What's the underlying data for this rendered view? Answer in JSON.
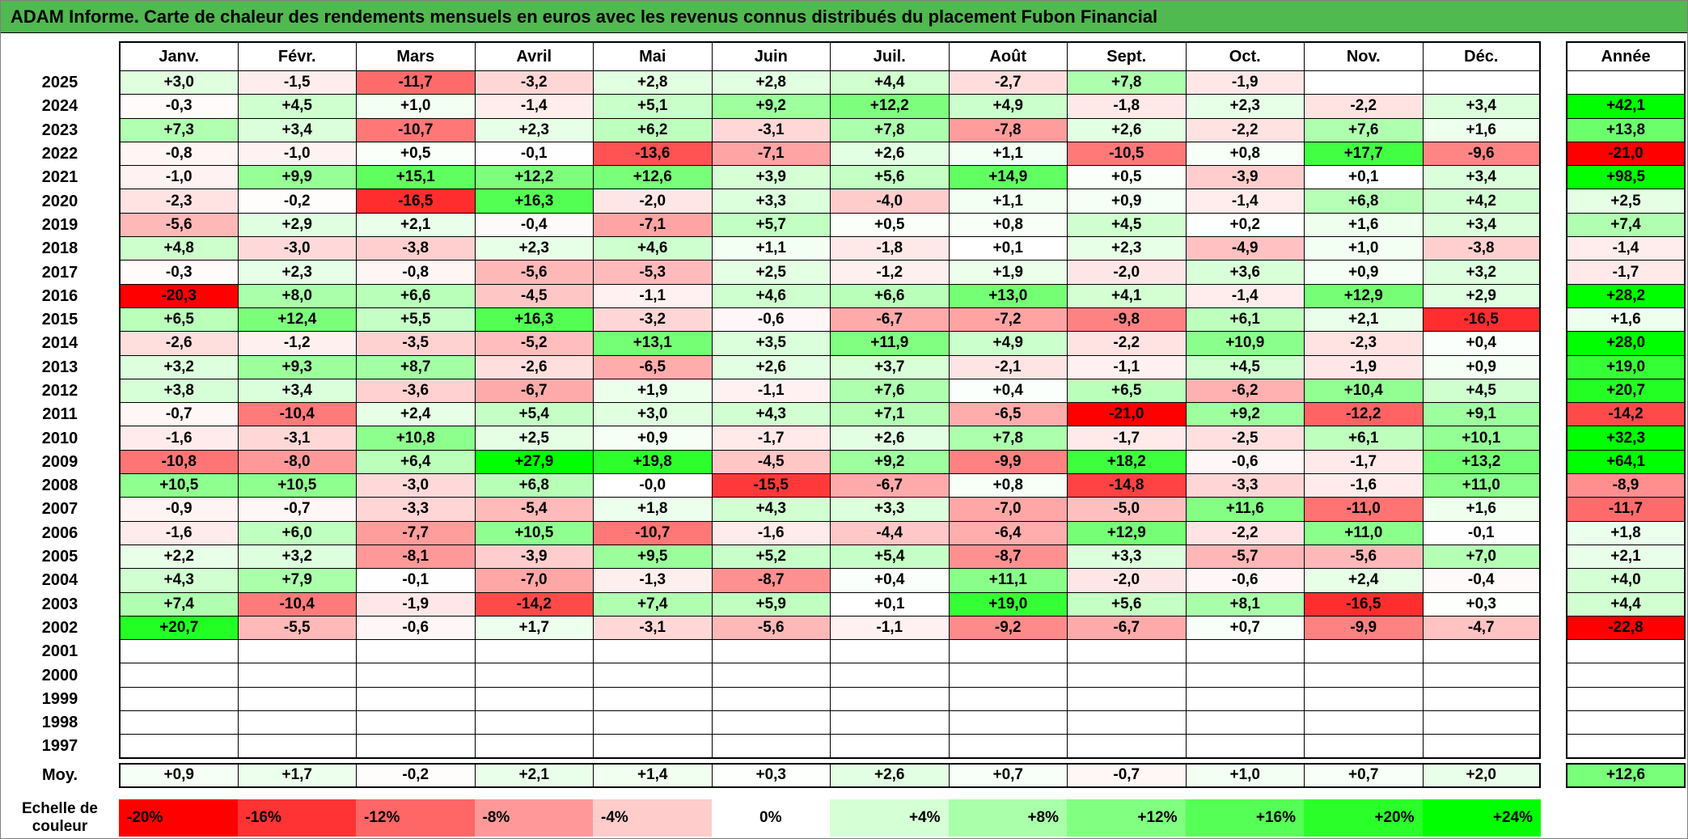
{
  "title": "ADAM Informe. Carte de chaleur des rendements mensuels en euros avec les revenus connus distribués du placement Fubon Financial",
  "colors": {
    "title_bar": "#50B950",
    "grid_line": "#000000",
    "negative_extreme": "#FF0000",
    "positive_extreme": "#00FF00",
    "neutral": "#FFFFFF"
  },
  "chart_data": {
    "type": "heatmap",
    "title": "ADAM Informe. Carte de chaleur des rendements mensuels en euros avec les revenus connus distribués du placement Fubon Financial",
    "columns": [
      "Janv.",
      "Févr.",
      "Mars",
      "Avril",
      "Mai",
      "Juin",
      "Juil.",
      "Août",
      "Sept.",
      "Oct.",
      "Nov.",
      "Déc."
    ],
    "annual_label": "Année",
    "avg_label": "Moy.",
    "rows": [
      {
        "year": "2025",
        "cells": [
          "+3,0",
          "-1,5",
          "-11,7",
          "-3,2",
          "+2,8",
          "+2,8",
          "+4,4",
          "-2,7",
          "+7,8",
          "-1,9",
          "",
          ""
        ],
        "annual": ""
      },
      {
        "year": "2024",
        "cells": [
          "-0,3",
          "+4,5",
          "+1,0",
          "-1,4",
          "+5,1",
          "+9,2",
          "+12,2",
          "+4,9",
          "-1,8",
          "+2,3",
          "-2,2",
          "+3,4"
        ],
        "annual": "+42,1"
      },
      {
        "year": "2023",
        "cells": [
          "+7,3",
          "+3,4",
          "-10,7",
          "+2,3",
          "+6,2",
          "-3,1",
          "+7,8",
          "-7,8",
          "+2,6",
          "-2,2",
          "+7,6",
          "+1,6"
        ],
        "annual": "+13,8"
      },
      {
        "year": "2022",
        "cells": [
          "-0,8",
          "-1,0",
          "+0,5",
          "-0,1",
          "-13,6",
          "-7,1",
          "+2,6",
          "+1,1",
          "-10,5",
          "+0,8",
          "+17,7",
          "-9,6"
        ],
        "annual": "-21,0"
      },
      {
        "year": "2021",
        "cells": [
          "-1,0",
          "+9,9",
          "+15,1",
          "+12,2",
          "+12,6",
          "+3,9",
          "+5,6",
          "+14,9",
          "+0,5",
          "-3,9",
          "+0,1",
          "+3,4"
        ],
        "annual": "+98,5"
      },
      {
        "year": "2020",
        "cells": [
          "-2,3",
          "-0,2",
          "-16,5",
          "+16,3",
          "-2,0",
          "+3,3",
          "-4,0",
          "+1,1",
          "+0,9",
          "-1,4",
          "+6,8",
          "+4,2"
        ],
        "annual": "+2,5"
      },
      {
        "year": "2019",
        "cells": [
          "-5,6",
          "+2,9",
          "+2,1",
          "-0,4",
          "-7,1",
          "+5,7",
          "+0,5",
          "+0,8",
          "+4,5",
          "+0,2",
          "+1,6",
          "+3,4"
        ],
        "annual": "+7,4"
      },
      {
        "year": "2018",
        "cells": [
          "+4,8",
          "-3,0",
          "-3,8",
          "+2,3",
          "+4,6",
          "+1,1",
          "-1,8",
          "+0,1",
          "+2,3",
          "-4,9",
          "+1,0",
          "-3,8"
        ],
        "annual": "-1,4"
      },
      {
        "year": "2017",
        "cells": [
          "-0,3",
          "+2,3",
          "-0,8",
          "-5,6",
          "-5,3",
          "+2,5",
          "-1,2",
          "+1,9",
          "-2,0",
          "+3,6",
          "+0,9",
          "+3,2"
        ],
        "annual": "-1,7"
      },
      {
        "year": "2016",
        "cells": [
          "-20,3",
          "+8,0",
          "+6,6",
          "-4,5",
          "-1,1",
          "+4,6",
          "+6,6",
          "+13,0",
          "+4,1",
          "-1,4",
          "+12,9",
          "+2,9"
        ],
        "annual": "+28,2"
      },
      {
        "year": "2015",
        "cells": [
          "+6,5",
          "+12,4",
          "+5,5",
          "+16,3",
          "-3,2",
          "-0,6",
          "-6,7",
          "-7,2",
          "-9,8",
          "+6,1",
          "+2,1",
          "-16,5"
        ],
        "annual": "+1,6"
      },
      {
        "year": "2014",
        "cells": [
          "-2,6",
          "-1,2",
          "-3,5",
          "-5,2",
          "+13,1",
          "+3,5",
          "+11,9",
          "+4,9",
          "-2,2",
          "+10,9",
          "-2,3",
          "+0,4"
        ],
        "annual": "+28,0"
      },
      {
        "year": "2013",
        "cells": [
          "+3,2",
          "+9,3",
          "+8,7",
          "-2,6",
          "-6,5",
          "+2,6",
          "+3,7",
          "-2,1",
          "-1,1",
          "+4,5",
          "-1,9",
          "+0,9"
        ],
        "annual": "+19,0"
      },
      {
        "year": "2012",
        "cells": [
          "+3,8",
          "+3,4",
          "-3,6",
          "-6,7",
          "+1,9",
          "-1,1",
          "+7,6",
          "+0,4",
          "+6,5",
          "-6,2",
          "+10,4",
          "+4,5"
        ],
        "annual": "+20,7"
      },
      {
        "year": "2011",
        "cells": [
          "-0,7",
          "-10,4",
          "+2,4",
          "+5,4",
          "+3,0",
          "+4,3",
          "+7,1",
          "-6,5",
          "-21,0",
          "+9,2",
          "-12,2",
          "+9,1"
        ],
        "annual": "-14,2"
      },
      {
        "year": "2010",
        "cells": [
          "-1,6",
          "-3,1",
          "+10,8",
          "+2,5",
          "+0,9",
          "-1,7",
          "+2,6",
          "+7,8",
          "-1,7",
          "-2,5",
          "+6,1",
          "+10,1"
        ],
        "annual": "+32,3"
      },
      {
        "year": "2009",
        "cells": [
          "-10,8",
          "-8,0",
          "+6,4",
          "+27,9",
          "+19,8",
          "-4,5",
          "+9,2",
          "-9,9",
          "+18,2",
          "-0,6",
          "-1,7",
          "+13,2"
        ],
        "annual": "+64,1"
      },
      {
        "year": "2008",
        "cells": [
          "+10,5",
          "+10,5",
          "-3,0",
          "+6,8",
          "-0,0",
          "-15,5",
          "-6,7",
          "+0,8",
          "-14,8",
          "-3,3",
          "-1,6",
          "+11,0"
        ],
        "annual": "-8,9"
      },
      {
        "year": "2007",
        "cells": [
          "-0,9",
          "-0,7",
          "-3,3",
          "-5,4",
          "+1,8",
          "+4,3",
          "+3,3",
          "-7,0",
          "-5,0",
          "+11,6",
          "-11,0",
          "+1,6"
        ],
        "annual": "-11,7"
      },
      {
        "year": "2006",
        "cells": [
          "-1,6",
          "+6,0",
          "-7,7",
          "+10,5",
          "-10,7",
          "-1,6",
          "-4,4",
          "-6,4",
          "+12,9",
          "-2,2",
          "+11,0",
          "-0,1"
        ],
        "annual": "+1,8"
      },
      {
        "year": "2005",
        "cells": [
          "+2,2",
          "+3,2",
          "-8,1",
          "-3,9",
          "+9,5",
          "+5,2",
          "+5,4",
          "-8,7",
          "+3,3",
          "-5,7",
          "-5,6",
          "+7,0"
        ],
        "annual": "+2,1"
      },
      {
        "year": "2004",
        "cells": [
          "+4,3",
          "+7,9",
          "-0,1",
          "-7,0",
          "-1,3",
          "-8,7",
          "+0,4",
          "+11,1",
          "-2,0",
          "-0,6",
          "+2,4",
          "-0,4"
        ],
        "annual": "+4,0"
      },
      {
        "year": "2003",
        "cells": [
          "+7,4",
          "-10,4",
          "-1,9",
          "-14,2",
          "+7,4",
          "+5,9",
          "+0,1",
          "+19,0",
          "+5,6",
          "+8,1",
          "-16,5",
          "+0,3"
        ],
        "annual": "+4,4"
      },
      {
        "year": "2002",
        "cells": [
          "+20,7",
          "-5,5",
          "-0,6",
          "+1,7",
          "-3,1",
          "-5,6",
          "-1,1",
          "-9,2",
          "-6,7",
          "+0,7",
          "-9,9",
          "-4,7"
        ],
        "annual": "-22,8"
      },
      {
        "year": "2001",
        "cells": [
          "",
          "",
          "",
          "",
          "",
          "",
          "",
          "",
          "",
          "",
          "",
          ""
        ],
        "annual": ""
      },
      {
        "year": "2000",
        "cells": [
          "",
          "",
          "",
          "",
          "",
          "",
          "",
          "",
          "",
          "",
          "",
          ""
        ],
        "annual": ""
      },
      {
        "year": "1999",
        "cells": [
          "",
          "",
          "",
          "",
          "",
          "",
          "",
          "",
          "",
          "",
          "",
          ""
        ],
        "annual": ""
      },
      {
        "year": "1998",
        "cells": [
          "",
          "",
          "",
          "",
          "",
          "",
          "",
          "",
          "",
          "",
          "",
          ""
        ],
        "annual": ""
      },
      {
        "year": "1997",
        "cells": [
          "",
          "",
          "",
          "",
          "",
          "",
          "",
          "",
          "",
          "",
          "",
          ""
        ],
        "annual": ""
      }
    ],
    "avg": {
      "cells": [
        "+0,9",
        "+1,7",
        "-0,2",
        "+2,1",
        "+1,4",
        "+0,3",
        "+2,6",
        "+0,7",
        "-0,7",
        "+1,0",
        "+0,7",
        "+2,0"
      ],
      "annual": "+12,6"
    },
    "scale": {
      "label_line1": "Echelle de",
      "label_line2": "couleur",
      "stops": [
        "-20%",
        "-16%",
        "-12%",
        "-8%",
        "-4%",
        "0%",
        "+4%",
        "+8%",
        "+12%",
        "+16%",
        "+20%",
        "+24%"
      ],
      "negative_limit_pct": 20,
      "positive_limit_pct": 24
    }
  }
}
